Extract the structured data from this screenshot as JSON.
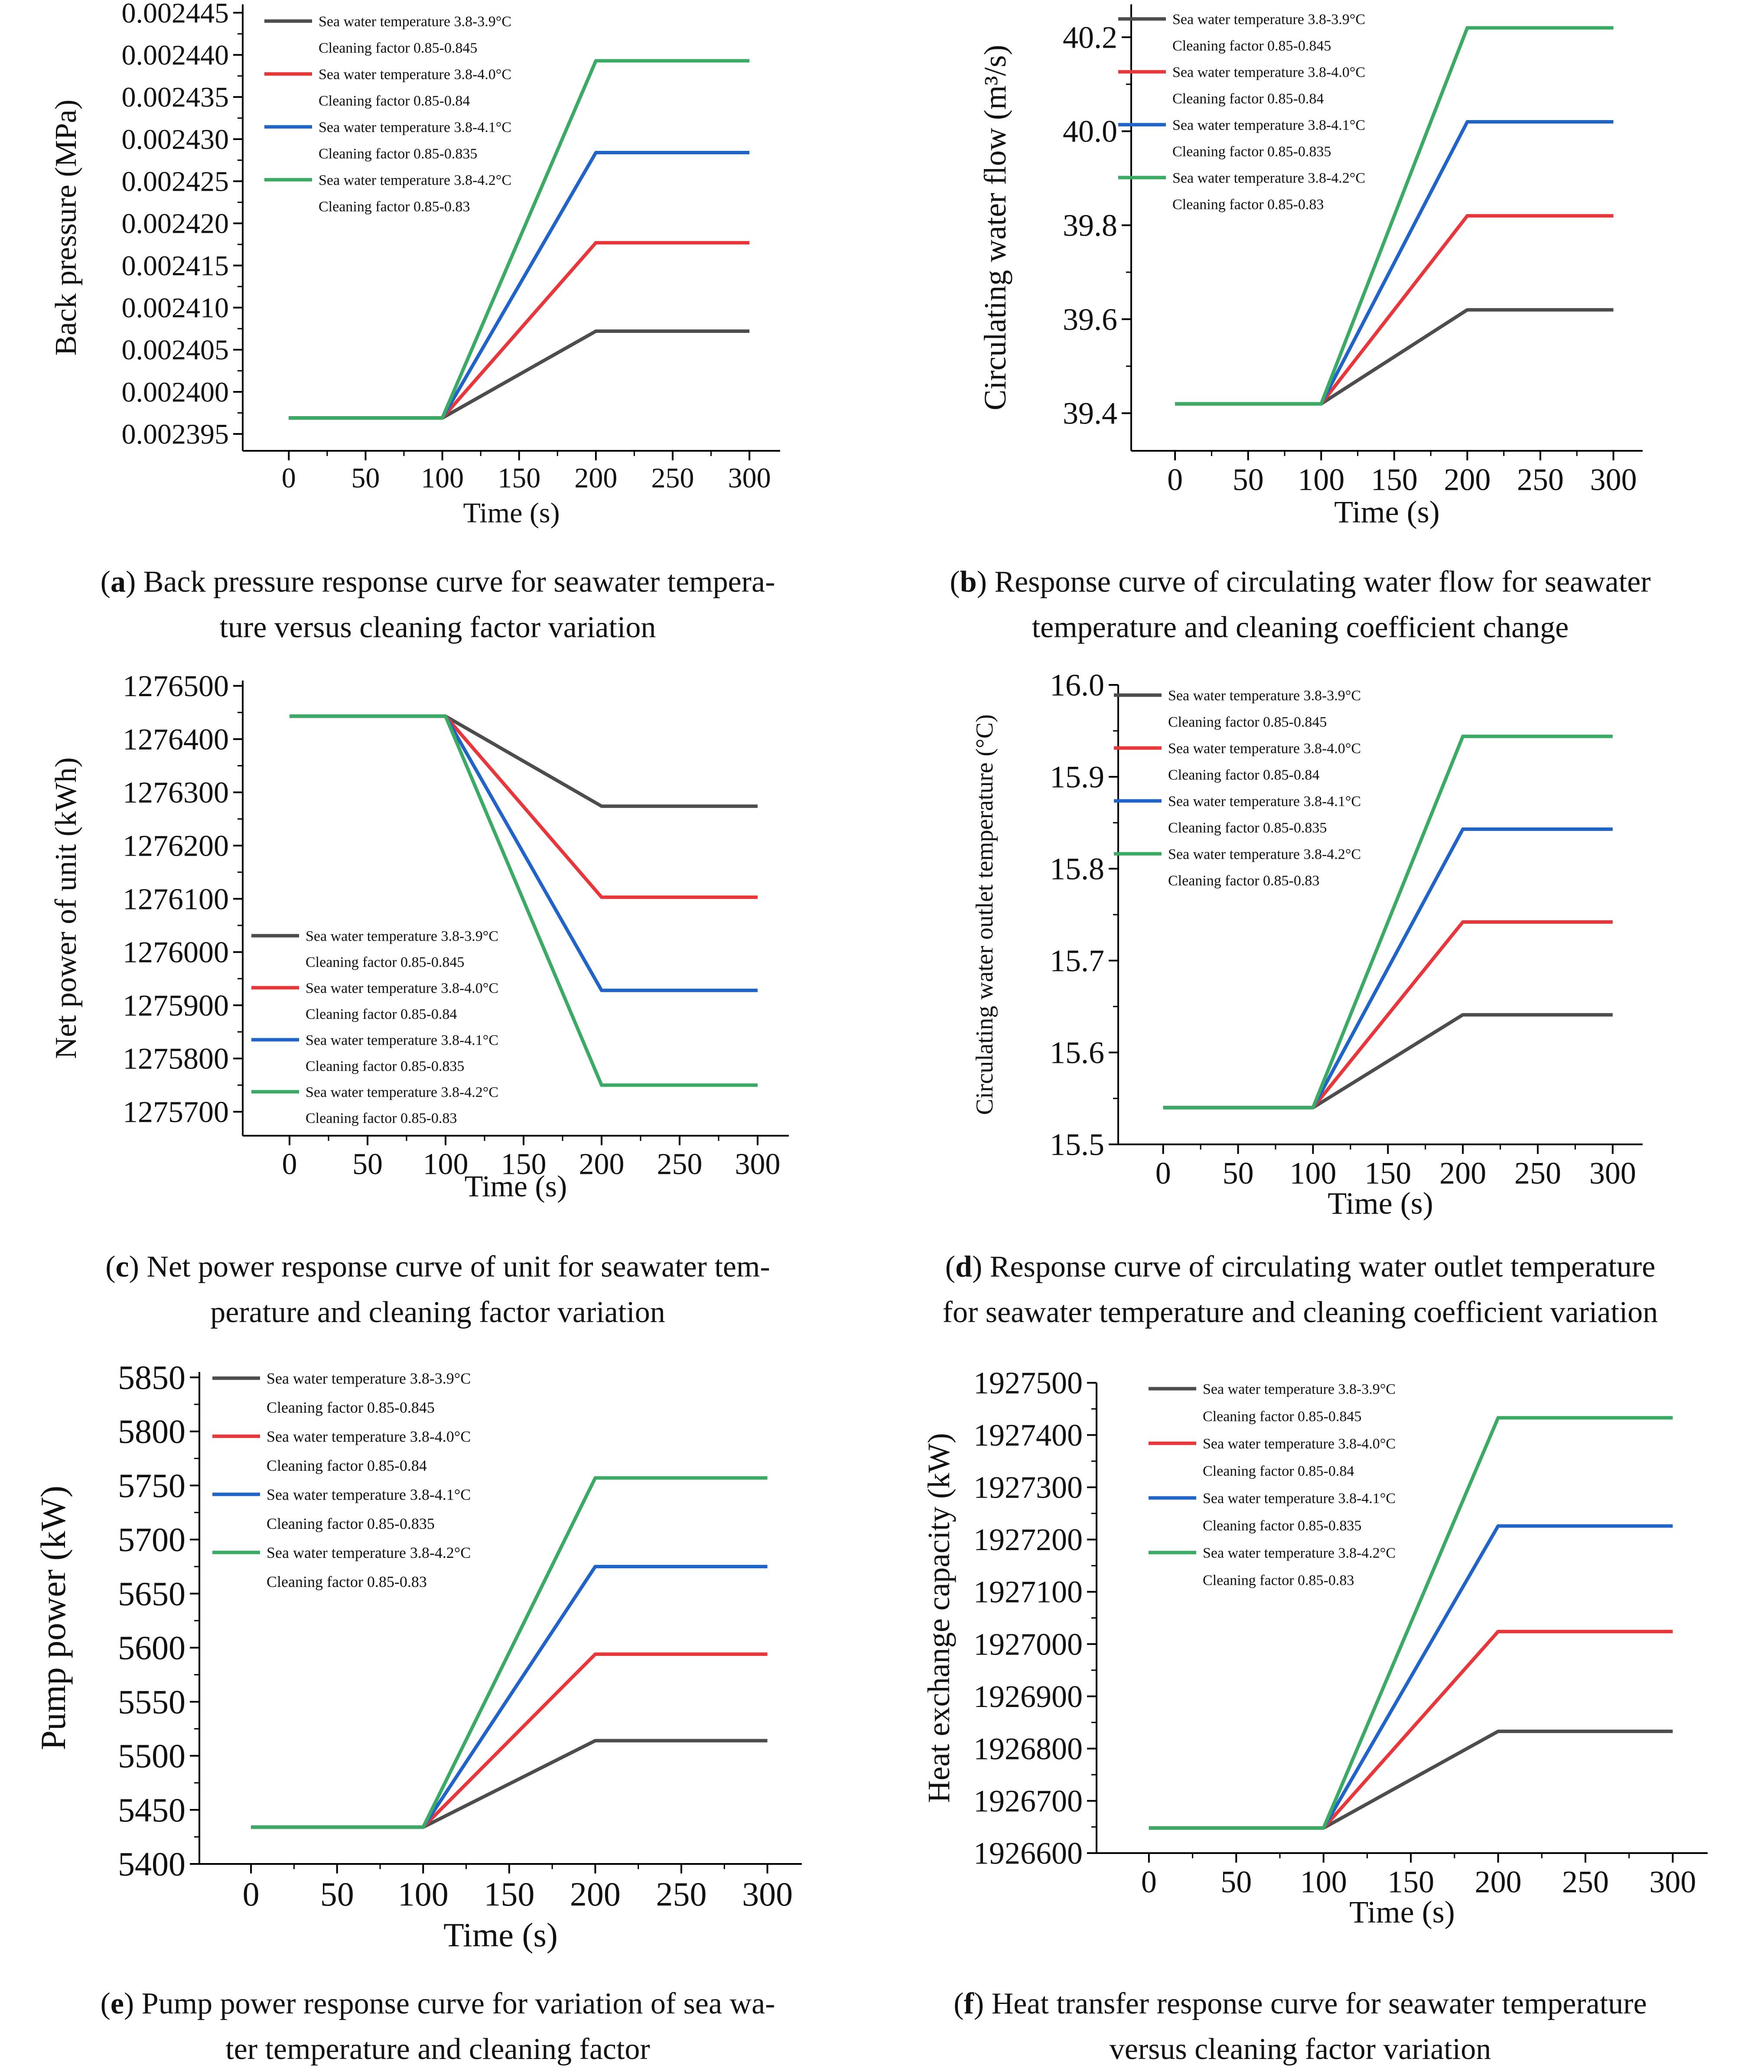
{
  "x_axis": {
    "label": "Time (s)",
    "ticks": [
      0,
      50,
      100,
      150,
      200,
      250,
      300
    ],
    "xlim": [
      -30,
      320
    ]
  },
  "legend_entries": [
    {
      "line1": "Sea water temperature 3.8-3.9°C",
      "line2": "Cleaning factor 0.85-0.845",
      "color": "#4d4d4d"
    },
    {
      "line1": "Sea water temperature 3.8-4.0°C",
      "line2": "Cleaning factor 0.85-0.84",
      "color": "#e8373a"
    },
    {
      "line1": "Sea water temperature 3.8-4.1°C",
      "line2": "Cleaning factor 0.85-0.835",
      "color": "#2164c8"
    },
    {
      "line1": "Sea water temperature 3.8-4.2°C",
      "line2": "Cleaning factor 0.85-0.83",
      "color": "#3aaa64"
    }
  ],
  "chart_data": [
    {
      "id": "a",
      "type": "line",
      "ylabel": "Back pressure (MPa)",
      "yticks": [
        "0.002395",
        "0.002400",
        "0.002405",
        "0.002410",
        "0.002415",
        "0.002420",
        "0.002425",
        "0.002430",
        "0.002435",
        "0.002440",
        "0.002445"
      ],
      "ylim": [
        0.002393,
        0.002446
      ],
      "caption_letter": "a",
      "caption_lines": [
        "Back pressure response curve for seawater tempera-",
        "ture versus cleaning factor variation"
      ],
      "series": [
        {
          "name": "Sea water temperature 3.8-3.9°C, Cleaning factor 0.85-0.845",
          "x": [
            0,
            100,
            200,
            300
          ],
          "values": [
            0.0023969,
            0.0023969,
            0.0024072,
            0.0024072
          ]
        },
        {
          "name": "Sea water temperature 3.8-4.0°C, Cleaning factor 0.85-0.84",
          "x": [
            0,
            100,
            200,
            300
          ],
          "values": [
            0.0023969,
            0.0023969,
            0.0024177,
            0.0024177
          ]
        },
        {
          "name": "Sea water temperature 3.8-4.1°C, Cleaning factor 0.85-0.835",
          "x": [
            0,
            100,
            200,
            300
          ],
          "values": [
            0.0023969,
            0.0023969,
            0.0024284,
            0.0024284
          ]
        },
        {
          "name": "Sea water temperature 3.8-4.2°C, Cleaning factor 0.85-0.83",
          "x": [
            0,
            100,
            200,
            300
          ],
          "values": [
            0.0023969,
            0.0023969,
            0.0024393,
            0.0024393
          ]
        }
      ]
    },
    {
      "id": "b",
      "type": "line",
      "ylabel": "Circulating water flow (m³/s)",
      "yticks": [
        "39.4",
        "39.6",
        "39.8",
        "40.0",
        "40.2"
      ],
      "ylim": [
        39.32,
        40.27
      ],
      "caption_letter": "b",
      "caption_lines": [
        "Response curve of circulating water flow for seawater",
        "temperature and cleaning coefficient change"
      ],
      "series": [
        {
          "name": "Sea water temperature 3.8-3.9°C, Cleaning factor 0.85-0.845",
          "x": [
            0,
            100,
            200,
            300
          ],
          "values": [
            39.42,
            39.42,
            39.62,
            39.62
          ]
        },
        {
          "name": "Sea water temperature 3.8-4.0°C, Cleaning factor 0.85-0.84",
          "x": [
            0,
            100,
            200,
            300
          ],
          "values": [
            39.42,
            39.42,
            39.82,
            39.82
          ]
        },
        {
          "name": "Sea water temperature 3.8-4.1°C, Cleaning factor 0.85-0.835",
          "x": [
            0,
            100,
            200,
            300
          ],
          "values": [
            39.42,
            39.42,
            40.02,
            40.02
          ]
        },
        {
          "name": "Sea water temperature 3.8-4.2°C, Cleaning factor 0.85-0.83",
          "x": [
            0,
            100,
            200,
            300
          ],
          "values": [
            39.42,
            39.42,
            40.22,
            40.22
          ]
        }
      ]
    },
    {
      "id": "c",
      "type": "line",
      "ylabel": "Net power of unit (kWh)",
      "yticks": [
        "1275700",
        "1275800",
        "1275900",
        "1276000",
        "1276100",
        "1276200",
        "1276300",
        "1276400",
        "1276500"
      ],
      "ylim": [
        1275655,
        1276510
      ],
      "caption_letter": "c",
      "caption_lines": [
        "Net power response curve of unit for seawater tem-",
        "perature and cleaning factor variation"
      ],
      "series": [
        {
          "name": "Sea water temperature 3.8-3.9°C, Cleaning factor 0.85-0.845",
          "x": [
            0,
            100,
            200,
            300
          ],
          "values": [
            1276443,
            1276443,
            1276274,
            1276274
          ]
        },
        {
          "name": "Sea water temperature 3.8-4.0°C, Cleaning factor 0.85-0.84",
          "x": [
            0,
            100,
            200,
            300
          ],
          "values": [
            1276443,
            1276443,
            1276103,
            1276103
          ]
        },
        {
          "name": "Sea water temperature 3.8-4.1°C, Cleaning factor 0.85-0.835",
          "x": [
            0,
            100,
            200,
            300
          ],
          "values": [
            1276443,
            1276443,
            1275928,
            1275928
          ]
        },
        {
          "name": "Sea water temperature 3.8-4.2°C, Cleaning factor 0.85-0.83",
          "x": [
            0,
            100,
            200,
            300
          ],
          "values": [
            1276443,
            1276443,
            1275750,
            1275750
          ]
        }
      ]
    },
    {
      "id": "d",
      "type": "line",
      "ylabel": "Circulating water outlet temperature (°C)",
      "yticks": [
        "15.5",
        "15.6",
        "15.7",
        "15.8",
        "15.9",
        "16.0"
      ],
      "ylim": [
        15.5,
        16.0
      ],
      "caption_letter": "d",
      "caption_lines": [
        "Response curve of circulating water outlet temperature",
        "for seawater temperature and cleaning coefficient variation"
      ],
      "series": [
        {
          "name": "Sea water temperature 3.8-3.9°C, Cleaning factor 0.85-0.845",
          "x": [
            0,
            100,
            200,
            300
          ],
          "values": [
            15.54,
            15.54,
            15.641,
            15.641
          ]
        },
        {
          "name": "Sea water temperature 3.8-4.0°C, Cleaning factor 0.85-0.84",
          "x": [
            0,
            100,
            200,
            300
          ],
          "values": [
            15.54,
            15.54,
            15.742,
            15.742
          ]
        },
        {
          "name": "Sea water temperature 3.8-4.1°C, Cleaning factor 0.85-0.835",
          "x": [
            0,
            100,
            200,
            300
          ],
          "values": [
            15.54,
            15.54,
            15.843,
            15.843
          ]
        },
        {
          "name": "Sea water temperature 3.8-4.2°C, Cleaning factor 0.85-0.83",
          "x": [
            0,
            100,
            200,
            300
          ],
          "values": [
            15.54,
            15.54,
            15.944,
            15.944
          ]
        }
      ]
    },
    {
      "id": "e",
      "type": "line",
      "ylabel": "Pump power (kW)",
      "yticks": [
        "5400",
        "5450",
        "5500",
        "5550",
        "5600",
        "5650",
        "5700",
        "5750",
        "5800",
        "5850"
      ],
      "ylim": [
        5400,
        5855
      ],
      "caption_letter": "e",
      "caption_lines": [
        "Pump power response curve for variation of sea wa-",
        "ter temperature and cleaning factor"
      ],
      "series": [
        {
          "name": "Sea water temperature 3.8-3.9°C, Cleaning factor 0.85-0.845",
          "x": [
            0,
            100,
            200,
            300
          ],
          "values": [
            5434,
            5434,
            5514,
            5514
          ]
        },
        {
          "name": "Sea water temperature 3.8-4.0°C, Cleaning factor 0.85-0.84",
          "x": [
            0,
            100,
            200,
            300
          ],
          "values": [
            5434,
            5434,
            5594,
            5594
          ]
        },
        {
          "name": "Sea water temperature 3.8-4.1°C, Cleaning factor 0.85-0.835",
          "x": [
            0,
            100,
            200,
            300
          ],
          "values": [
            5434,
            5434,
            5675,
            5675
          ]
        },
        {
          "name": "Sea water temperature 3.8-4.2°C, Cleaning factor 0.85-0.83",
          "x": [
            0,
            100,
            200,
            300
          ],
          "values": [
            5434,
            5434,
            5757,
            5757
          ]
        }
      ]
    },
    {
      "id": "f",
      "type": "line",
      "ylabel": "Heat exchange capacity (kW)",
      "yticks": [
        "1926600",
        "1926700",
        "1926800",
        "1926900",
        "1927000",
        "1927100",
        "1927200",
        "1927300",
        "1927400",
        "1927500"
      ],
      "ylim": [
        1926600,
        1927500
      ],
      "caption_letter": "f",
      "caption_lines": [
        "Heat transfer response curve for seawater temperature",
        "versus cleaning factor variation"
      ],
      "series": [
        {
          "name": "Sea water temperature 3.8-3.9°C, Cleaning factor 0.85-0.845",
          "x": [
            0,
            100,
            200,
            300
          ],
          "values": [
            1926648,
            1926648,
            1926833,
            1926833
          ]
        },
        {
          "name": "Sea water temperature 3.8-4.0°C, Cleaning factor 0.85-0.84",
          "x": [
            0,
            100,
            200,
            300
          ],
          "values": [
            1926648,
            1926648,
            1927024,
            1927024
          ]
        },
        {
          "name": "Sea water temperature 3.8-4.1°C, Cleaning factor 0.85-0.835",
          "x": [
            0,
            100,
            200,
            300
          ],
          "values": [
            1926648,
            1926648,
            1927226,
            1927226
          ]
        },
        {
          "name": "Sea water temperature 3.8-4.2°C, Cleaning factor 0.85-0.83",
          "x": [
            0,
            100,
            200,
            300
          ],
          "values": [
            1926648,
            1926648,
            1927433,
            1927433
          ]
        }
      ]
    }
  ]
}
